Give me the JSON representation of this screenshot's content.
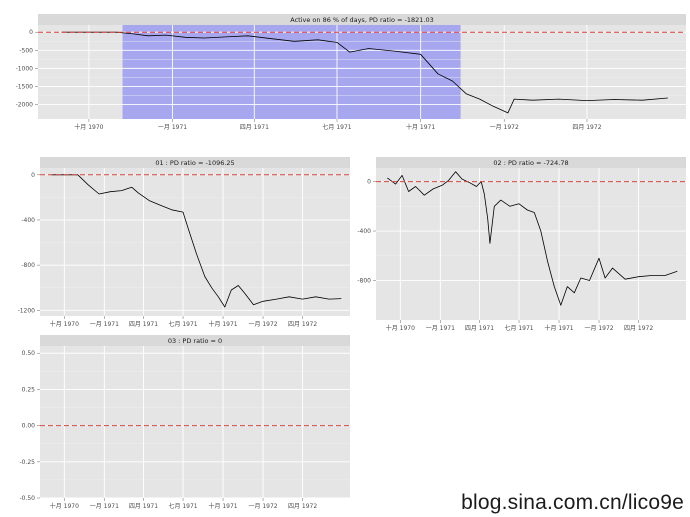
{
  "watermark": "blog.sina.com.cn/lico9e",
  "chart_data": [
    {
      "type": "line",
      "title": "Active on 86 % of days, PD ratio =  -1821.03",
      "categories": [
        "十月 1970",
        "一月 1971",
        "四月 1971",
        "七月 1971",
        "十月 1971",
        "一月 1972",
        "四月 1972"
      ],
      "xlim": [
        "1970-08-06",
        "1972-07-19"
      ],
      "ylim": [
        -2400,
        200
      ],
      "yticks": [
        0,
        -500,
        -1000,
        -1500,
        -2000
      ],
      "ytick_labels": [
        "0",
        "-500",
        "-1000",
        "-1500",
        "-2000"
      ],
      "reference_line": 0,
      "highlight": {
        "start": "1970-11-07",
        "end": "1971-11-14",
        "color": "#a7a7f0"
      },
      "series": [
        {
          "values": [
            [
              "1970-09-01",
              0
            ],
            [
              "1970-10-15",
              0
            ],
            [
              "1970-11-01",
              0
            ],
            [
              "1970-11-20",
              -50
            ],
            [
              "1970-12-05",
              -100
            ],
            [
              "1970-12-25",
              -80
            ],
            [
              "1971-01-15",
              -140
            ],
            [
              "1971-02-05",
              -160
            ],
            [
              "1971-03-01",
              -130
            ],
            [
              "1971-03-25",
              -100
            ],
            [
              "1971-04-20",
              -180
            ],
            [
              "1971-05-15",
              -250
            ],
            [
              "1971-06-10",
              -210
            ],
            [
              "1971-07-01",
              -280
            ],
            [
              "1971-07-15",
              -550
            ],
            [
              "1971-08-05",
              -450
            ],
            [
              "1971-09-01",
              -520
            ],
            [
              "1971-10-01",
              -610
            ],
            [
              "1971-10-20",
              -1150
            ],
            [
              "1971-11-05",
              -1350
            ],
            [
              "1971-11-20",
              -1700
            ],
            [
              "1971-12-05",
              -1850
            ],
            [
              "1971-12-20",
              -2050
            ],
            [
              "1972-01-05",
              -2230
            ],
            [
              "1972-01-12",
              -1850
            ],
            [
              "1972-02-01",
              -1880
            ],
            [
              "1972-03-01",
              -1850
            ],
            [
              "1972-04-01",
              -1890
            ],
            [
              "1972-05-01",
              -1860
            ],
            [
              "1972-06-01",
              -1880
            ],
            [
              "1972-06-29",
              -1820
            ]
          ]
        }
      ]
    },
    {
      "type": "line",
      "title": "01 : PD ratio =  -1096.25",
      "categories": [
        "十月 1970",
        "一月 1971",
        "四月 1971",
        "七月 1971",
        "十月 1971",
        "一月 1972",
        "四月 1972"
      ],
      "xlim": [
        "1970-08-06",
        "1972-07-19"
      ],
      "ylim": [
        -1250,
        60
      ],
      "yticks": [
        0,
        -400,
        -800,
        -1200
      ],
      "ytick_labels": [
        "0",
        "-400",
        "-800",
        "-1200"
      ],
      "reference_line": 0,
      "series": [
        {
          "values": [
            [
              "1970-09-01",
              0
            ],
            [
              "1970-11-01",
              0
            ],
            [
              "1970-11-25",
              -90
            ],
            [
              "1970-12-20",
              -170
            ],
            [
              "1971-01-15",
              -150
            ],
            [
              "1971-02-10",
              -140
            ],
            [
              "1971-03-05",
              -110
            ],
            [
              "1971-03-20",
              -160
            ],
            [
              "1971-04-15",
              -230
            ],
            [
              "1971-05-10",
              -270
            ],
            [
              "1971-06-05",
              -310
            ],
            [
              "1971-07-01",
              -330
            ],
            [
              "1971-07-15",
              -500
            ],
            [
              "1971-08-01",
              -700
            ],
            [
              "1971-08-20",
              -900
            ],
            [
              "1971-09-05",
              -1000
            ],
            [
              "1971-09-20",
              -1080
            ],
            [
              "1971-10-05",
              -1170
            ],
            [
              "1971-10-20",
              -1020
            ],
            [
              "1971-11-05",
              -980
            ],
            [
              "1971-11-20",
              -1050
            ],
            [
              "1971-12-10",
              -1150
            ],
            [
              "1972-01-01",
              -1120
            ],
            [
              "1972-02-01",
              -1100
            ],
            [
              "1972-03-01",
              -1080
            ],
            [
              "1972-04-01",
              -1100
            ],
            [
              "1972-05-01",
              -1080
            ],
            [
              "1972-06-01",
              -1100
            ],
            [
              "1972-06-29",
              -1096
            ]
          ]
        }
      ]
    },
    {
      "type": "line",
      "title": "02 : PD ratio =  -724.78",
      "categories": [
        "十月 1970",
        "一月 1971",
        "四月 1971",
        "七月 1971",
        "十月 1971",
        "一月 1972",
        "四月 1972"
      ],
      "xlim": [
        "1970-08-06",
        "1972-07-19"
      ],
      "ylim": [
        -1120,
        110
      ],
      "yticks": [
        0,
        -400,
        -800
      ],
      "ytick_labels": [
        "0",
        "-400",
        "-800"
      ],
      "reference_line": 0,
      "series": [
        {
          "values": [
            [
              "1970-09-01",
              30
            ],
            [
              "1970-09-20",
              -20
            ],
            [
              "1970-10-05",
              50
            ],
            [
              "1970-10-20",
              -80
            ],
            [
              "1970-11-05",
              -40
            ],
            [
              "1970-11-25",
              -110
            ],
            [
              "1970-12-15",
              -60
            ],
            [
              "1971-01-05",
              -30
            ],
            [
              "1971-01-20",
              10
            ],
            [
              "1971-02-05",
              80
            ],
            [
              "1971-02-20",
              20
            ],
            [
              "1971-03-10",
              -10
            ],
            [
              "1971-03-25",
              -40
            ],
            [
              "1971-04-05",
              0
            ],
            [
              "1971-04-12",
              -100
            ],
            [
              "1971-04-20",
              -300
            ],
            [
              "1971-04-25",
              -500
            ],
            [
              "1971-05-05",
              -200
            ],
            [
              "1971-05-20",
              -150
            ],
            [
              "1971-06-10",
              -200
            ],
            [
              "1971-07-01",
              -180
            ],
            [
              "1971-07-20",
              -230
            ],
            [
              "1971-08-05",
              -250
            ],
            [
              "1971-08-20",
              -400
            ],
            [
              "1971-09-05",
              -650
            ],
            [
              "1971-09-20",
              -850
            ],
            [
              "1971-10-05",
              -1000
            ],
            [
              "1971-10-20",
              -850
            ],
            [
              "1971-11-05",
              -900
            ],
            [
              "1971-11-20",
              -780
            ],
            [
              "1971-12-10",
              -800
            ],
            [
              "1972-01-01",
              -620
            ],
            [
              "1972-01-15",
              -780
            ],
            [
              "1972-02-01",
              -700
            ],
            [
              "1972-03-01",
              -790
            ],
            [
              "1972-04-01",
              -770
            ],
            [
              "1972-05-01",
              -760
            ],
            [
              "1972-06-01",
              -760
            ],
            [
              "1972-06-29",
              -725
            ]
          ]
        }
      ]
    },
    {
      "type": "line",
      "title": "03 : PD ratio =  0",
      "categories": [
        "十月 1970",
        "一月 1971",
        "四月 1971",
        "七月 1971",
        "十月 1971",
        "一月 1972",
        "四月 1972"
      ],
      "xlim": [
        "1970-08-06",
        "1972-07-19"
      ],
      "ylim": [
        -0.5,
        0.55
      ],
      "yticks": [
        0.5,
        0.25,
        0,
        -0.25,
        -0.5
      ],
      "ytick_labels": [
        "0.50",
        "0.25",
        "0.00",
        "-0.25",
        "-0.50"
      ],
      "reference_line": 0,
      "series": []
    }
  ]
}
